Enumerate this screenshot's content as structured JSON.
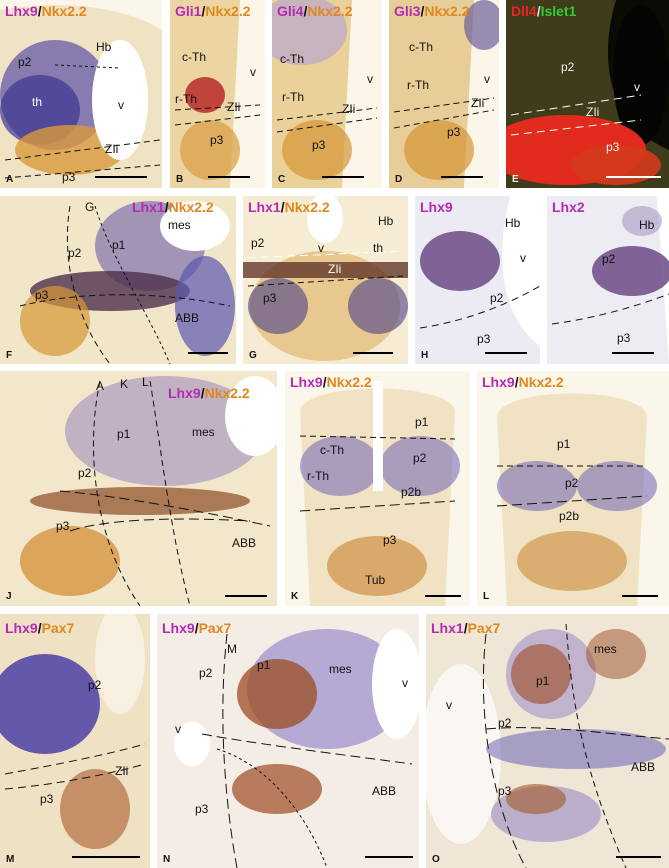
{
  "colors": {
    "magenta": "#b32bb5",
    "orange": "#e0881f",
    "red": "#ee2222",
    "green": "#33cc33",
    "bg_tissue": "#f1e6c8",
    "dark_panel": "#0b0b06"
  },
  "panels": [
    {
      "id": "A",
      "title": [
        "Lhx9",
        "Nkx2.2"
      ],
      "regions": [
        "p2",
        "Hb",
        "th",
        "v",
        "ZIi",
        "p3"
      ]
    },
    {
      "id": "B",
      "title": [
        "Gli1",
        "Nkx2.2"
      ],
      "regions": [
        "c-Th",
        "v",
        "r-Th",
        "ZIi",
        "p3"
      ]
    },
    {
      "id": "C",
      "title": [
        "Gli4",
        "Nkx2.2"
      ],
      "regions": [
        "c-Th",
        "v",
        "r-Th",
        "ZIi",
        "p3"
      ]
    },
    {
      "id": "D",
      "title": [
        "Gli3",
        "Nkx2.2"
      ],
      "regions": [
        "c-Th",
        "v",
        "r-Th",
        "ZIi",
        "p3"
      ]
    },
    {
      "id": "E",
      "title": [
        "Dll4",
        "Islet1"
      ],
      "regions": [
        "p2",
        "v",
        "ZIi",
        "p3"
      ]
    },
    {
      "id": "F",
      "title": [
        "Lhx1",
        "Nkx2.2"
      ],
      "regions": [
        "G",
        "mes",
        "p1",
        "p2",
        "p3",
        "ABB"
      ]
    },
    {
      "id": "G",
      "title": [
        "Lhx1",
        "Nkx2.2"
      ],
      "regions": [
        "Hb",
        "p2",
        "v",
        "th",
        "ZIi",
        "p3"
      ]
    },
    {
      "id": "H",
      "title": [
        "Lhx9"
      ],
      "regions": [
        "Hb",
        "v",
        "p2",
        "p3"
      ]
    },
    {
      "id": "I",
      "title": [
        "Lhx2"
      ],
      "regions": [
        "Hb",
        "p2",
        "p3"
      ]
    },
    {
      "id": "J",
      "title": [
        "Lhx9",
        "Nkx2.2"
      ],
      "regions": [
        "A",
        "K",
        "L",
        "p1",
        "mes",
        "p2",
        "p3",
        "ABB"
      ]
    },
    {
      "id": "K",
      "title": [
        "Lhx9",
        "Nkx2.2"
      ],
      "regions": [
        "p1",
        "c-Th",
        "p2",
        "r-Th",
        "p2b",
        "p3",
        "Tub"
      ]
    },
    {
      "id": "L",
      "title": [
        "Lhx9",
        "Nkx2.2"
      ],
      "regions": [
        "p1",
        "p2",
        "p2b"
      ]
    },
    {
      "id": "M",
      "title": [
        "Lhx9",
        "Pax7"
      ],
      "regions": [
        "p2",
        "ZIi",
        "p3"
      ]
    },
    {
      "id": "N",
      "title": [
        "Lhx9",
        "Pax7"
      ],
      "regions": [
        "M",
        "p2",
        "p1",
        "mes",
        "v",
        "v",
        "p3",
        "ABB"
      ]
    },
    {
      "id": "O",
      "title": [
        "Lhx1",
        "Pax7"
      ],
      "regions": [
        "mes",
        "v",
        "p1",
        "p2",
        "ABB",
        "p3"
      ]
    }
  ]
}
